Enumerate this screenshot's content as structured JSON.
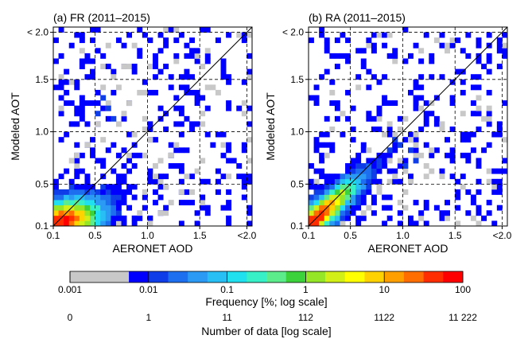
{
  "chart_data": [
    {
      "type": "heatmap",
      "title": "(a) FR (2011–2015)",
      "xlabel": "AERONET AOD",
      "ylabel": "Modeled AOT",
      "xlim": [
        0.1,
        2.0
      ],
      "ylim": [
        0.1,
        2.0
      ],
      "x_ticks": [
        "0.1",
        "0.5",
        "1.0",
        "1.5",
        "<2.0"
      ],
      "y_ticks": [
        "0.1",
        "0.5",
        "1.0",
        "1.5",
        "< 2.0"
      ],
      "tick_values": [
        0.1,
        0.5,
        1.0,
        1.5,
        1.95
      ],
      "bin_width": 0.05,
      "grid": true,
      "one_to_one_line": true,
      "core": {
        "x": 0.18,
        "y": 0.14,
        "sx": 0.22,
        "sy": 0.13,
        "rho": 0.35
      },
      "scatter": [
        [
          0.6,
          1.8
        ],
        [
          0.75,
          1.6
        ],
        [
          0.9,
          1.4
        ],
        [
          0.55,
          1.45
        ],
        [
          0.62,
          1.22
        ],
        [
          0.78,
          1.18
        ],
        [
          0.98,
          1.15
        ],
        [
          0.52,
          1.05
        ],
        [
          0.88,
          0.98
        ],
        [
          1.02,
          0.9
        ],
        [
          1.15,
          0.72
        ],
        [
          1.22,
          0.78
        ],
        [
          1.08,
          0.65
        ],
        [
          1.38,
          0.58
        ],
        [
          1.2,
          0.48
        ],
        [
          0.98,
          0.42
        ],
        [
          1.25,
          0.32
        ],
        [
          1.12,
          0.25
        ],
        [
          0.92,
          0.2
        ],
        [
          1.02,
          0.15
        ],
        [
          0.42,
          0.88
        ],
        [
          0.35,
          0.78
        ],
        [
          0.82,
          1.3
        ],
        [
          0.68,
          1.55
        ],
        [
          0.28,
          0.72
        ],
        [
          1.32,
          0.4
        ],
        [
          0.95,
          0.78
        ],
        [
          0.72,
          1.05
        ],
        [
          0.58,
          0.92
        ],
        [
          1.05,
          0.55
        ]
      ],
      "blue_points": [
        [
          0.58,
          1.32
        ],
        [
          0.62,
          1.25
        ],
        [
          0.5,
          1.18
        ],
        [
          0.68,
          1.12
        ]
      ]
    },
    {
      "type": "heatmap",
      "title": "(b) RA (2011–2015)",
      "xlabel": "AERONET AOD",
      "ylabel": "Modeled AOT",
      "xlim": [
        0.1,
        2.0
      ],
      "ylim": [
        0.1,
        2.0
      ],
      "x_ticks": [
        "0.1",
        "0.5",
        "1.0",
        "1.5",
        "<2.0"
      ],
      "y_ticks": [
        "0.1",
        "0.5",
        "1.0",
        "1.5",
        "< 2.0"
      ],
      "tick_values": [
        0.1,
        0.5,
        1.0,
        1.5,
        1.95
      ],
      "bin_width": 0.05,
      "grid": true,
      "one_to_one_line": true,
      "core": {
        "x": 0.16,
        "y": 0.16,
        "sx": 0.24,
        "sy": 0.22,
        "rho": 0.9
      },
      "scatter": [
        [
          0.92,
          0.95
        ],
        [
          0.98,
          1.02
        ],
        [
          1.05,
          0.92
        ],
        [
          1.12,
          0.85
        ],
        [
          1.18,
          0.78
        ],
        [
          1.22,
          0.7
        ],
        [
          1.3,
          0.62
        ],
        [
          1.25,
          0.55
        ],
        [
          1.35,
          0.55
        ],
        [
          0.85,
          1.05
        ],
        [
          0.8,
          0.98
        ],
        [
          1.4,
          1.05
        ],
        [
          0.75,
          0.4
        ],
        [
          0.9,
          0.55
        ],
        [
          1.02,
          0.62
        ],
        [
          1.08,
          0.5
        ],
        [
          0.95,
          0.35
        ],
        [
          1.15,
          0.95
        ],
        [
          0.7,
          0.82
        ],
        [
          1.28,
          0.8
        ],
        [
          0.88,
          0.72
        ],
        [
          1.02,
          1.1
        ],
        [
          0.65,
          0.3
        ],
        [
          0.78,
          0.48
        ]
      ],
      "blue_points": [
        [
          0.92,
          0.92
        ],
        [
          0.98,
          0.86
        ],
        [
          1.05,
          0.8
        ],
        [
          1.1,
          0.74
        ],
        [
          0.85,
          0.8
        ],
        [
          1.0,
          0.7
        ]
      ]
    }
  ],
  "colorbar": {
    "colors": [
      "#c8c8c8",
      "#0000ff",
      "#0f3de8",
      "#1e6ff0",
      "#2a9af5",
      "#28bff5",
      "#20e0f0",
      "#38f0c8",
      "#5cec8c",
      "#3cd23c",
      "#96e628",
      "#d2f018",
      "#ffff00",
      "#ffd200",
      "#ffa000",
      "#ff6e00",
      "#ff2d00",
      "#ff0000"
    ],
    "frequency_ticks": [
      "0.001",
      "0.01",
      "0.1",
      "1",
      "10",
      "100"
    ],
    "frequency_label": "Frequency [%; log scale]",
    "count_ticks": [
      "0",
      "1",
      "11",
      "112",
      "1122",
      "11 222"
    ],
    "count_label": "Number of data [log scale]"
  }
}
